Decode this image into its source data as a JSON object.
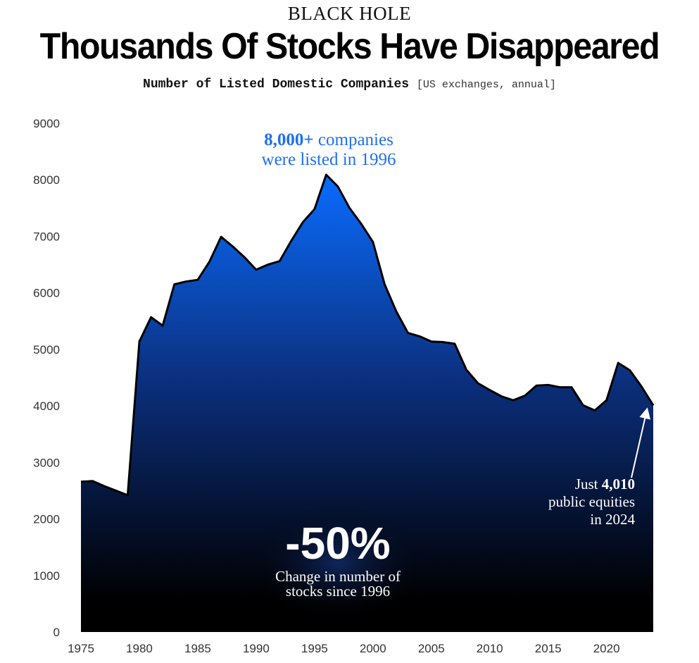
{
  "header": {
    "kicker": "BLACK HOLE",
    "title": "Thousands Of Stocks Have Disappeared",
    "subtitle": "Number of Listed Domestic Companies",
    "subtitle_note": "[US exchanges, annual]"
  },
  "colors": {
    "area_top": "#0a6cff",
    "area_mid": "#0b2f7d",
    "area_bottom": "#000000",
    "annotation_blue": "#1f6ff0"
  },
  "chart_data": {
    "type": "area",
    "title": "Number of Listed Domestic Companies",
    "xlabel": "",
    "ylabel": "",
    "xlim": [
      1975,
      2024
    ],
    "ylim": [
      0,
      9000
    ],
    "xticks": [
      1975,
      1980,
      1985,
      1990,
      1995,
      2000,
      2005,
      2010,
      2015,
      2020
    ],
    "yticks": [
      0,
      1000,
      2000,
      3000,
      4000,
      5000,
      6000,
      7000,
      8000,
      9000
    ],
    "x": [
      1975,
      1976,
      1977,
      1978,
      1979,
      1980,
      1981,
      1982,
      1983,
      1984,
      1985,
      1986,
      1987,
      1988,
      1989,
      1990,
      1991,
      1992,
      1993,
      1994,
      1995,
      1996,
      1997,
      1998,
      1999,
      2000,
      2001,
      2002,
      2003,
      2004,
      2005,
      2006,
      2007,
      2008,
      2009,
      2010,
      2011,
      2012,
      2013,
      2014,
      2015,
      2016,
      2017,
      2018,
      2019,
      2020,
      2021,
      2022,
      2023,
      2024
    ],
    "values": [
      2660,
      2670,
      2580,
      2500,
      2420,
      5140,
      5570,
      5420,
      6150,
      6200,
      6230,
      6550,
      6990,
      6820,
      6630,
      6410,
      6500,
      6560,
      6920,
      7250,
      7480,
      8090,
      7880,
      7500,
      7220,
      6900,
      6150,
      5670,
      5290,
      5230,
      5140,
      5130,
      5100,
      4640,
      4400,
      4280,
      4170,
      4100,
      4180,
      4360,
      4370,
      4330,
      4330,
      4010,
      3920,
      4100,
      4760,
      4630,
      4340,
      4010
    ],
    "annotations": {
      "peak_value": "8,000+",
      "peak_rest": " companies",
      "peak_line2": "were listed in 1996",
      "change_value": "-50%",
      "change_line1": "Change in number of",
      "change_line2": "stocks since 1996",
      "end_prefix": "Just ",
      "end_value": "4,010",
      "end_line2": "public equities",
      "end_line3": "in 2024"
    }
  }
}
